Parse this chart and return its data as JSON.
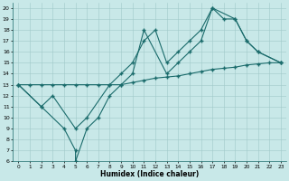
{
  "bg_color": "#c8e8e8",
  "line_color": "#1a6b6b",
  "line1": {
    "x": [
      0,
      1,
      2,
      3,
      4,
      5,
      6,
      7,
      8,
      9,
      10,
      11,
      12,
      13,
      14,
      15,
      16,
      17,
      18,
      19,
      20,
      21,
      22,
      23
    ],
    "y": [
      13,
      13,
      13,
      13,
      13,
      13,
      13,
      13,
      13,
      13,
      13.2,
      13.4,
      13.6,
      13.7,
      13.8,
      14,
      14.2,
      14.4,
      14.5,
      14.6,
      14.8,
      14.9,
      15,
      15
    ]
  },
  "line2": {
    "x": [
      0,
      2,
      4,
      5,
      5,
      6,
      7,
      8,
      9,
      10,
      11,
      13,
      14,
      15,
      16,
      17,
      19,
      20,
      21,
      23
    ],
    "y": [
      13,
      11,
      9,
      7,
      6,
      9,
      10,
      12,
      13,
      14,
      18,
      14,
      15,
      16,
      17,
      20,
      19,
      17,
      16,
      15
    ]
  },
  "line3": {
    "x": [
      0,
      2,
      3,
      5,
      6,
      8,
      9,
      10,
      11,
      12,
      13,
      14,
      15,
      16,
      17,
      18,
      19,
      20,
      21,
      23
    ],
    "y": [
      13,
      11,
      12,
      9,
      10,
      13,
      14,
      15,
      17,
      18,
      15,
      16,
      17,
      18,
      20,
      19,
      19,
      17,
      16,
      15
    ]
  },
  "xlim": [
    -0.5,
    23.5
  ],
  "ylim": [
    6,
    20.5
  ],
  "yticks": [
    6,
    7,
    8,
    9,
    10,
    11,
    12,
    13,
    14,
    15,
    16,
    17,
    18,
    19,
    20
  ],
  "xticks": [
    0,
    1,
    2,
    3,
    4,
    5,
    6,
    7,
    8,
    9,
    10,
    11,
    12,
    13,
    14,
    15,
    16,
    17,
    18,
    19,
    20,
    21,
    22,
    23
  ],
  "xlabel": "Humidex (Indice chaleur)",
  "marker": "+",
  "markersize": 3.5,
  "linewidth": 0.8
}
